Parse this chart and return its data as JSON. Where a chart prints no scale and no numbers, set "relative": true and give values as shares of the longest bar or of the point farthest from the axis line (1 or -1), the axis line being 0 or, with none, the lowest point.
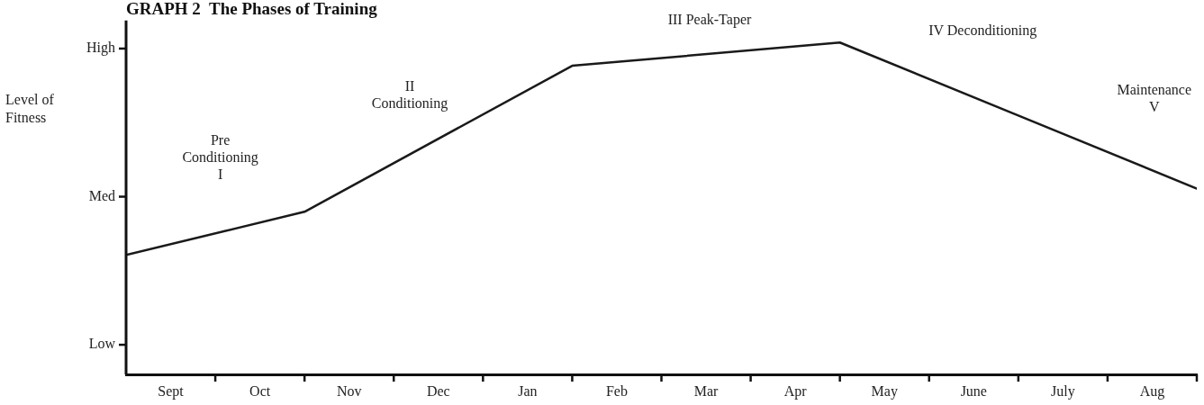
{
  "chart_data": {
    "type": "line",
    "title": "GRAPH 2  The Phases of Training",
    "ylabel": "Level of Fitness",
    "relative": true,
    "categories": [
      null,
      null,
      null,
      null,
      null,
      null,
      null,
      null,
      null,
      null,
      null,
      null,
      null
    ],
    "series": [
      {
        "color": "#1a1a1a",
        "values": [
          0.36,
          null,
          0.49,
          null,
          null,
          0.93,
          null,
          null,
          1,
          null,
          0.78,
          null,
          0.56
        ]
      }
    ],
    "annotations": [
      "Low",
      "Med",
      "High",
      "Pre\nConditioning\nI",
      "II\nConditioning",
      "III Peak-Taper",
      "IV Deconditioning",
      "Maintenance\nV",
      "Sept",
      "Oct",
      "Nov",
      "Dec",
      "Jan",
      "Feb",
      "Mar",
      "Apr",
      "May",
      "June",
      "July",
      "Aug"
    ],
    "grid": false,
    "legend": false,
    "line_style": "solid"
  }
}
